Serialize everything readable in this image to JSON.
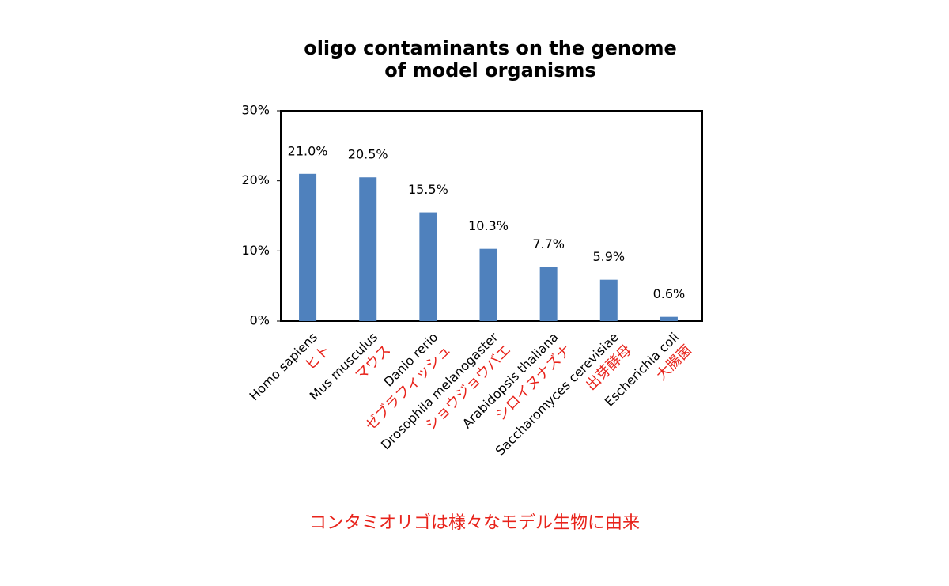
{
  "chart_data": {
    "type": "bar",
    "title": [
      "oligo contaminants on the genome",
      "of model organisms"
    ],
    "categories": [
      "Homo sapiens",
      "Mus musculus",
      "Danio rerio",
      "Drosophila melanogaster",
      "Arabidopsis thaliana",
      "Saccharomyces cerevisiae",
      "Escherichia coli"
    ],
    "categories_ja": [
      "ヒト",
      "マウス",
      "ゼブラフィッシュ",
      "ショウジョウバエ",
      "シロイヌナズナ",
      "出芽酵母",
      "大腸菌"
    ],
    "values": [
      21.0,
      20.5,
      15.5,
      10.3,
      7.7,
      5.9,
      0.6
    ],
    "value_labels": [
      "21.0%",
      "20.5%",
      "15.5%",
      "10.3%",
      "7.7%",
      "5.9%",
      "0.6%"
    ],
    "color": "#4f81bd",
    "ylim": [
      0,
      30
    ],
    "yticks": [
      {
        "value": 0,
        "label": "0%"
      },
      {
        "value": 10,
        "label": "10%"
      },
      {
        "value": 20,
        "label": "20%"
      },
      {
        "value": 30,
        "label": "30%"
      }
    ],
    "caption": "コンタミオリゴは様々なモデル生物に由来"
  }
}
